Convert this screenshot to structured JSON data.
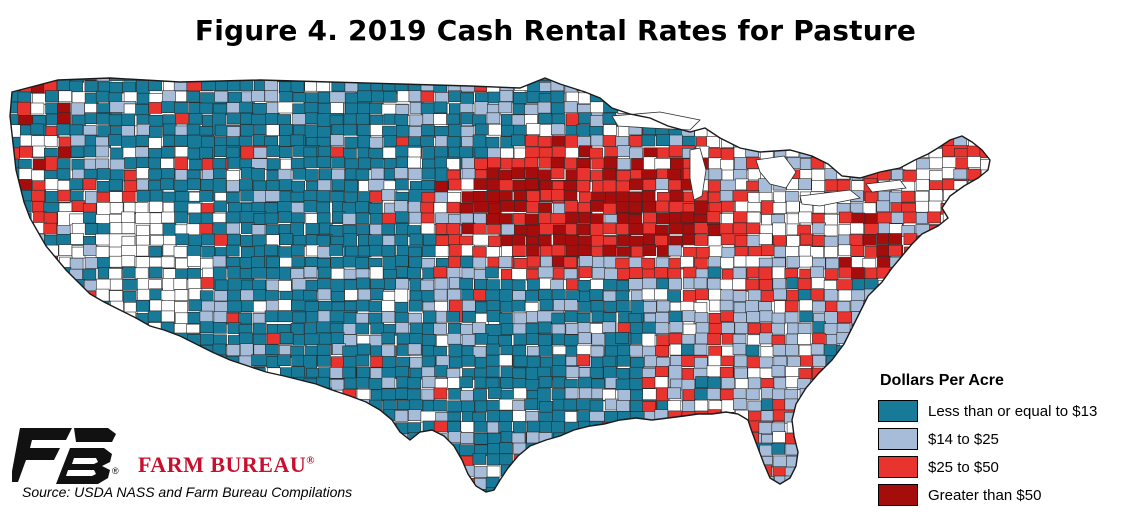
{
  "title": "Figure 4. 2019 Cash Rental Rates for Pasture",
  "legend": {
    "title": "Dollars Per Acre",
    "items": [
      {
        "label": "Less than or equal to $13",
        "color": "#177a99"
      },
      {
        "label": "$14 to $25",
        "color": "#a6bcd9"
      },
      {
        "label": "$25 to $50",
        "color": "#e8332e"
      },
      {
        "label": "Greater than $50",
        "color": "#a50d0d"
      }
    ]
  },
  "brand": {
    "name": "FARM BUREAU",
    "registered_mark": "®",
    "logo_mark": "®",
    "logo_color": "#111111",
    "name_color": "#c8102e"
  },
  "source": "Source: USDA NASS and Farm Bureau Compilations",
  "colors": {
    "no_data": "#ffffff",
    "county_border": "#2b2b2b"
  }
}
